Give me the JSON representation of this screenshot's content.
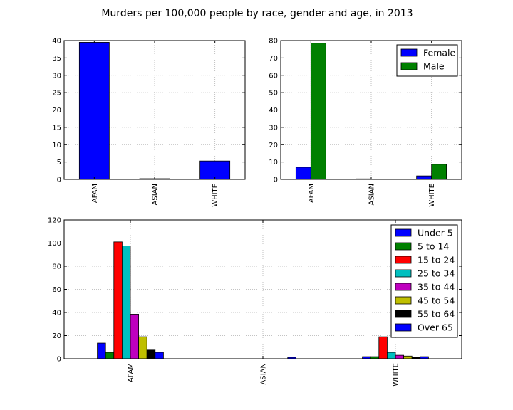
{
  "suptitle": "Murders per 100,000 people by race, gender and age, in 2013",
  "chart_data": [
    {
      "type": "bar",
      "categories": [
        "AFAM",
        "ASIAN",
        "WHITE"
      ],
      "series": [
        {
          "values": [
            39.5,
            0.2,
            5.3
          ],
          "color": "#0000ff"
        }
      ],
      "ylim": [
        0,
        40
      ],
      "yticks": [
        0,
        5,
        10,
        15,
        20,
        25,
        30,
        35,
        40
      ],
      "grid": true,
      "legend": null
    },
    {
      "type": "bar",
      "categories": [
        "AFAM",
        "ASIAN",
        "WHITE"
      ],
      "series": [
        {
          "name": "Female",
          "values": [
            7.0,
            0.3,
            2.0
          ],
          "color": "#0000ff"
        },
        {
          "name": "Male",
          "values": [
            78.5,
            0.0,
            8.7
          ],
          "color": "#008000"
        }
      ],
      "ylim": [
        0,
        80
      ],
      "yticks": [
        0,
        10,
        20,
        30,
        40,
        50,
        60,
        70,
        80
      ],
      "grid": true,
      "legend": "top-right"
    },
    {
      "type": "bar",
      "categories": [
        "AFAM",
        "ASIAN",
        "WHITE"
      ],
      "series": [
        {
          "name": "Under 5",
          "values": [
            13.5,
            0.0,
            1.8
          ],
          "color": "#0000ff"
        },
        {
          "name": "5 to 14",
          "values": [
            5.5,
            0.0,
            1.8
          ],
          "color": "#008000"
        },
        {
          "name": "15 to 24",
          "values": [
            101.0,
            0.0,
            19.0
          ],
          "color": "#ff0000"
        },
        {
          "name": "25 to 34",
          "values": [
            97.5,
            0.0,
            5.5
          ],
          "color": "#00bfbf"
        },
        {
          "name": "35 to 44",
          "values": [
            38.5,
            0.0,
            3.0
          ],
          "color": "#bf00bf"
        },
        {
          "name": "45 to 54",
          "values": [
            19.0,
            0.0,
            2.3
          ],
          "color": "#bfbf00"
        },
        {
          "name": "55 to 64",
          "values": [
            7.5,
            0.0,
            1.0
          ],
          "color": "#000000"
        },
        {
          "name": "Over 65",
          "values": [
            5.5,
            1.2,
            1.8
          ],
          "color": "#0000ff"
        }
      ],
      "ylim": [
        0,
        120
      ],
      "yticks": [
        0,
        20,
        40,
        60,
        80,
        100,
        120
      ],
      "grid": true,
      "legend": "top-right"
    }
  ]
}
